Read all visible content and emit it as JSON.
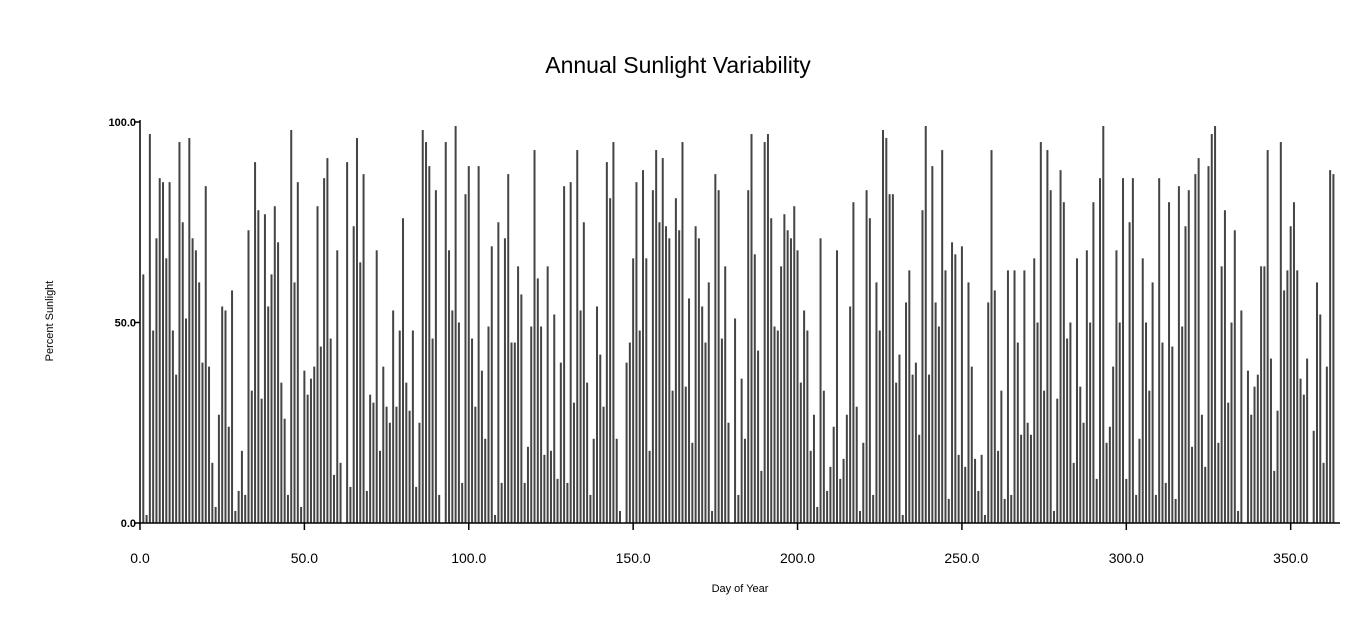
{
  "chart_data": {
    "type": "bar",
    "title": "Annual Sunlight Variability",
    "xlabel": "Day of Year",
    "ylabel": "Percent Sunlight",
    "xlim": [
      0,
      365
    ],
    "ylim": [
      0,
      100
    ],
    "xticks": [
      0,
      50,
      100,
      150,
      200,
      250,
      300,
      350
    ],
    "xtick_labels": [
      "0.0",
      "50.0",
      "100.0",
      "150.0",
      "200.0",
      "250.0",
      "300.0",
      "350.0"
    ],
    "yticks": [
      0,
      50,
      100
    ],
    "ytick_labels": [
      "0.0",
      "50.0",
      "100.0"
    ],
    "grid": false,
    "bar_color": "#444444",
    "x_start": 1,
    "values": [
      62,
      2,
      97,
      48,
      71,
      86,
      85,
      66,
      85,
      48,
      37,
      95,
      75,
      51,
      96,
      71,
      68,
      60,
      40,
      84,
      39,
      15,
      4,
      27,
      54,
      53,
      24,
      58,
      3,
      8,
      18,
      7,
      73,
      33,
      90,
      78,
      31,
      77,
      54,
      62,
      79,
      70,
      35,
      26,
      7,
      98,
      60,
      85,
      4,
      38,
      32,
      36,
      39,
      79,
      44,
      86,
      91,
      46,
      12,
      68,
      15,
      0,
      90,
      9,
      74,
      96,
      65,
      87,
      8,
      32,
      30,
      68,
      18,
      39,
      29,
      25,
      53,
      29,
      48,
      76,
      35,
      28,
      48,
      9,
      25,
      98,
      95,
      89,
      46,
      83,
      7,
      0,
      95,
      68,
      53,
      99,
      50,
      10,
      82,
      89,
      46,
      29,
      89,
      38,
      21,
      49,
      69,
      2,
      75,
      10,
      71,
      87,
      45,
      45,
      64,
      57,
      10,
      19,
      49,
      93,
      61,
      49,
      17,
      64,
      18,
      52,
      11,
      40,
      84,
      10,
      85,
      30,
      93,
      53,
      75,
      35,
      7,
      21,
      54,
      42,
      29,
      90,
      81,
      95,
      21,
      3,
      0,
      40,
      45,
      66,
      85,
      48,
      88,
      66,
      18,
      83,
      93,
      75,
      91,
      74,
      71,
      33,
      81,
      73,
      95,
      34,
      56,
      20,
      74,
      71,
      54,
      45,
      60,
      3,
      87,
      83,
      46,
      64,
      25,
      0,
      51,
      7,
      36,
      21,
      83,
      97,
      67,
      43,
      13,
      95,
      97,
      76,
      49,
      48,
      64,
      77,
      73,
      71,
      79,
      68,
      35,
      53,
      48,
      18,
      27,
      4,
      71,
      33,
      8,
      14,
      24,
      68,
      11,
      16,
      27,
      54,
      80,
      29,
      3,
      20,
      83,
      76,
      7,
      60,
      48,
      98,
      96,
      82,
      82,
      35,
      42,
      2,
      55,
      63,
      37,
      40,
      22,
      78,
      99,
      37,
      89,
      55,
      49,
      93,
      63,
      6,
      70,
      67,
      17,
      69,
      14,
      60,
      39,
      16,
      8,
      17,
      2,
      55,
      93,
      58,
      18,
      33,
      6,
      63,
      7,
      63,
      45,
      22,
      63,
      25,
      22,
      66,
      50,
      95,
      33,
      93,
      83,
      3,
      31,
      88,
      80,
      46,
      50,
      15,
      66,
      34,
      25,
      68,
      50,
      80,
      11,
      86,
      99,
      20,
      24,
      39,
      68,
      50,
      86,
      11,
      75,
      86,
      7,
      21,
      66,
      50,
      33,
      60,
      7,
      86,
      45,
      10,
      80,
      44,
      6,
      84,
      49,
      74,
      83,
      19,
      87,
      91,
      27,
      14,
      89,
      97,
      99,
      20,
      64,
      78,
      30,
      50,
      73,
      3,
      53,
      0,
      38,
      27,
      34,
      37,
      64,
      64,
      93,
      41,
      13,
      28,
      95,
      58,
      63,
      74,
      80,
      63,
      36,
      32,
      41,
      0,
      23,
      60,
      52,
      15,
      39,
      88,
      87
    ]
  }
}
